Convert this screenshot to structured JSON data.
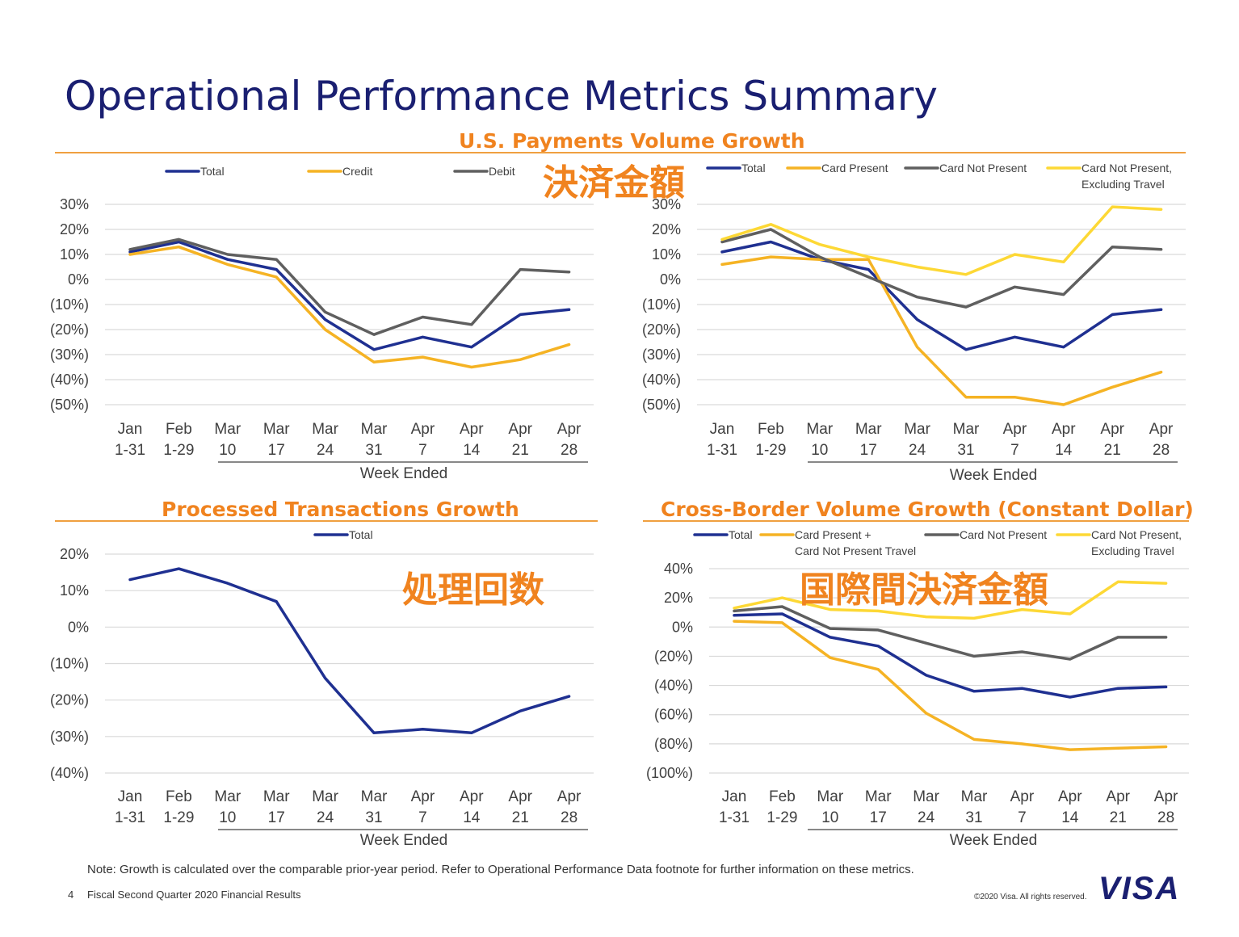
{
  "page": {
    "title": "Operational Performance Metrics Summary",
    "footnote": "Note: Growth is calculated over the comparable prior-year period. Refer to Operational Performance Data footnote for further information on these metrics.",
    "page_number": "4",
    "footer_label": "Fiscal Second Quarter 2020 Financial Results",
    "copyright": "©2020 Visa. All rights reserved.",
    "logo_text": "VISA"
  },
  "sections": {
    "us_payments": "U.S. Payments Volume Growth",
    "processed": "Processed Transactions Growth",
    "cross_border": "Cross-Border Volume Growth (Constant Dollar)"
  },
  "overlays": {
    "us_payments_jp": "決済金額",
    "processed_jp": "処理回数",
    "cross_border_jp": "国際間決済金額"
  },
  "colors": {
    "total": "#1f3091",
    "credit": "#f5b324",
    "debit": "#5f5f5f",
    "cnp_ex_travel": "#fdd835",
    "accent": "#f0831f",
    "title": "#1a1f71"
  },
  "chart_data": [
    {
      "type": "line",
      "name": "us_payments_credit_debit",
      "x_top": [
        "Jan",
        "Feb",
        "Mar",
        "Mar",
        "Mar",
        "Mar",
        "Apr",
        "Apr",
        "Apr",
        "Apr"
      ],
      "x_bottom": [
        "1-31",
        "1-29",
        "10",
        "17",
        "24",
        "31",
        "7",
        "14",
        "21",
        "28"
      ],
      "xlabel": "Week Ended",
      "yticks": [
        "30%",
        "20%",
        "10%",
        "0%",
        "(10%)",
        "(20%)",
        "(30%)",
        "(40%)",
        "(50%)"
      ],
      "ylim": [
        -50,
        30
      ],
      "series": [
        {
          "name": "Total",
          "color": "#1f3091",
          "values": [
            11,
            15,
            8,
            4,
            -16,
            -28,
            -23,
            -27,
            -14,
            -12
          ]
        },
        {
          "name": "Credit",
          "color": "#f5b324",
          "values": [
            10,
            13,
            6,
            1,
            -20,
            -33,
            -31,
            -35,
            -32,
            -26
          ]
        },
        {
          "name": "Debit",
          "color": "#5f5f5f",
          "values": [
            12,
            16,
            10,
            8,
            -13,
            -22,
            -15,
            -18,
            4,
            3
          ]
        }
      ]
    },
    {
      "type": "line",
      "name": "us_payments_card_present",
      "x_top": [
        "Jan",
        "Feb",
        "Mar",
        "Mar",
        "Mar",
        "Mar",
        "Apr",
        "Apr",
        "Apr",
        "Apr"
      ],
      "x_bottom": [
        "1-31",
        "1-29",
        "10",
        "17",
        "24",
        "31",
        "7",
        "14",
        "21",
        "28"
      ],
      "xlabel": "Week Ended",
      "yticks": [
        "30%",
        "20%",
        "10%",
        "0%",
        "(10%)",
        "(20%)",
        "(30%)",
        "(40%)",
        "(50%)"
      ],
      "ylim": [
        -50,
        30
      ],
      "series": [
        {
          "name": "Total",
          "color": "#1f3091",
          "values": [
            11,
            15,
            8,
            4,
            -16,
            -28,
            -23,
            -27,
            -14,
            -12
          ]
        },
        {
          "name": "Card Present",
          "color": "#f5b324",
          "values": [
            6,
            9,
            8,
            8,
            -27,
            -47,
            -47,
            -50,
            -43,
            -37
          ]
        },
        {
          "name": "Card Not Present",
          "color": "#5f5f5f",
          "values": [
            15,
            20,
            9,
            1,
            -7,
            -11,
            -3,
            -6,
            13,
            12
          ]
        },
        {
          "name": "Card Not Present, Excluding Travel",
          "color": "#fdd835",
          "values": [
            16,
            22,
            14,
            9,
            5,
            2,
            10,
            7,
            29,
            28
          ]
        }
      ]
    },
    {
      "type": "line",
      "name": "processed_transactions",
      "x_top": [
        "Jan",
        "Feb",
        "Mar",
        "Mar",
        "Mar",
        "Mar",
        "Apr",
        "Apr",
        "Apr",
        "Apr"
      ],
      "x_bottom": [
        "1-31",
        "1-29",
        "10",
        "17",
        "24",
        "31",
        "7",
        "14",
        "21",
        "28"
      ],
      "xlabel": "Week Ended",
      "yticks": [
        "20%",
        "10%",
        "0%",
        "(10%)",
        "(20%)",
        "(30%)",
        "(40%)"
      ],
      "ylim": [
        -40,
        20
      ],
      "series": [
        {
          "name": "Total",
          "color": "#1f3091",
          "values": [
            13,
            16,
            12,
            7,
            -14,
            -29,
            -28,
            -29,
            -23,
            -19
          ]
        }
      ]
    },
    {
      "type": "line",
      "name": "cross_border",
      "x_top": [
        "Jan",
        "Feb",
        "Mar",
        "Mar",
        "Mar",
        "Mar",
        "Apr",
        "Apr",
        "Apr",
        "Apr"
      ],
      "x_bottom": [
        "1-31",
        "1-29",
        "10",
        "17",
        "24",
        "31",
        "7",
        "14",
        "21",
        "28"
      ],
      "xlabel": "Week Ended",
      "yticks": [
        "40%",
        "20%",
        "0%",
        "(20%)",
        "(40%)",
        "(60%)",
        "(80%)",
        "(100%)"
      ],
      "ylim": [
        -100,
        40
      ],
      "series": [
        {
          "name": "Total",
          "color": "#1f3091",
          "values": [
            8,
            9,
            -7,
            -13,
            -33,
            -44,
            -42,
            -48,
            -42,
            -41
          ]
        },
        {
          "name": "Card Present + Card Not Present Travel",
          "color": "#f5b324",
          "values": [
            4,
            3,
            -21,
            -29,
            -59,
            -77,
            -80,
            -84,
            -83,
            -82
          ]
        },
        {
          "name": "Card Not Present",
          "color": "#5f5f5f",
          "values": [
            11,
            14,
            -1,
            -2,
            -11,
            -20,
            -17,
            -22,
            -7,
            -7
          ]
        },
        {
          "name": "Card Not Present, Excluding Travel",
          "color": "#fdd835",
          "values": [
            13,
            20,
            12,
            11,
            7,
            6,
            12,
            9,
            31,
            30
          ]
        }
      ]
    }
  ]
}
